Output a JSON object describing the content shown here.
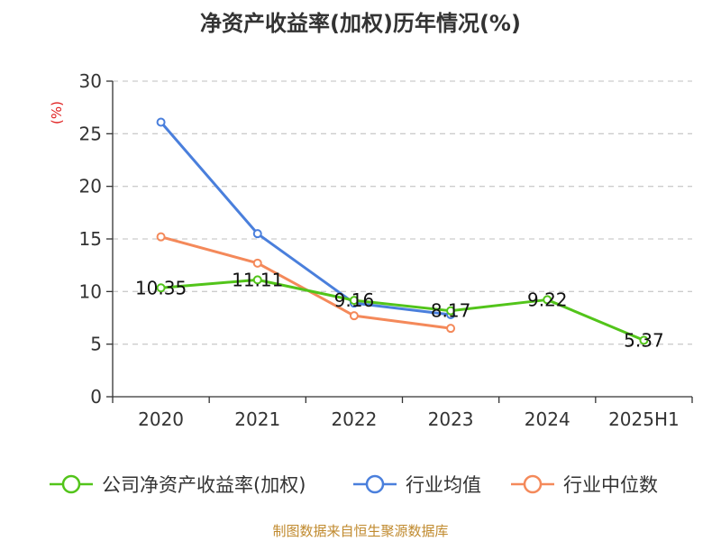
{
  "chart_data": {
    "type": "line",
    "title": "净资产收益率(加权)历年情况(%)",
    "ylabel": "(%)",
    "categories": [
      "2020",
      "2021",
      "2022",
      "2023",
      "2024",
      "2025H1"
    ],
    "ylim": [
      0,
      30
    ],
    "yticks": [
      0,
      5,
      10,
      15,
      20,
      25,
      30
    ],
    "grid": true,
    "legend_position": "bottom",
    "series": [
      {
        "name": "公司净资产收益率(加权)",
        "color": "#52c41a",
        "values": [
          10.35,
          11.11,
          9.16,
          8.17,
          9.22,
          5.37
        ],
        "labels": [
          "10.35",
          "11.11",
          "9.16",
          "8.17",
          "9.22",
          "5.37"
        ]
      },
      {
        "name": "行业均值",
        "color": "#4a7fdc",
        "values": [
          26.1,
          15.5,
          8.9,
          7.8,
          null,
          null
        ]
      },
      {
        "name": "行业中位数",
        "color": "#f4895a",
        "values": [
          15.2,
          12.7,
          7.7,
          6.5,
          null,
          null
        ]
      }
    ]
  },
  "colors": {
    "unit_label": "#e02020",
    "source_note": "#c08a2e"
  },
  "source_note": "制图数据来自恒生聚源数据库"
}
